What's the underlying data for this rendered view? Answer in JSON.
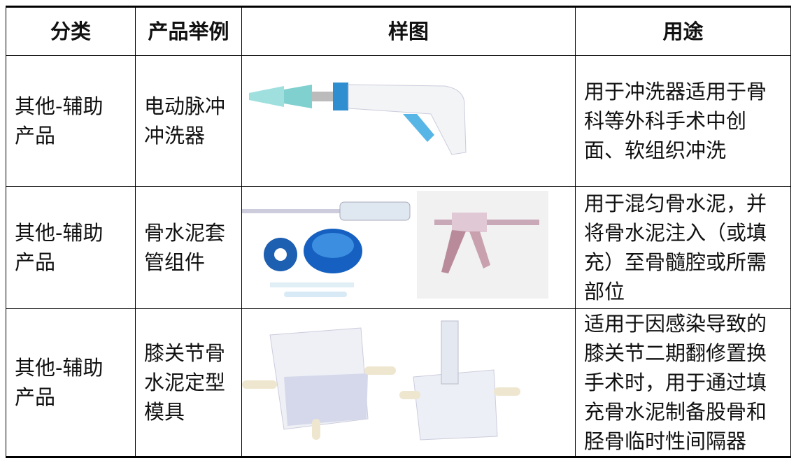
{
  "table": {
    "header": [
      "分类",
      "产品举例",
      "样图",
      "用途"
    ],
    "rows": [
      [
        [
          "其他-辅助",
          "产品"
        ],
        [
          "电动脉冲",
          "冲洗器"
        ],
        null,
        [
          "用于冲洗器适用于骨",
          "科等外科手术中创",
          "面、软组织冲洗"
        ]
      ],
      [
        [
          "其他-辅助",
          "产品"
        ],
        [
          "骨水泥套",
          "管组件"
        ],
        null,
        [
          "用于混匀骨水泥，并",
          "将骨水泥注入（或填",
          "充）至骨髓腔或所需",
          "部位"
        ]
      ],
      [
        [
          "其他-辅助",
          "产品"
        ],
        [
          "膝关节骨",
          "水泥定型",
          "模具"
        ],
        null,
        [
          "适用于因感染导致的",
          "膝关节二期翻修置换",
          "手术时，用于通过填",
          "充骨水泥制备股骨和",
          "胫骨临时性间隔器"
        ]
      ]
    ]
  }
}
